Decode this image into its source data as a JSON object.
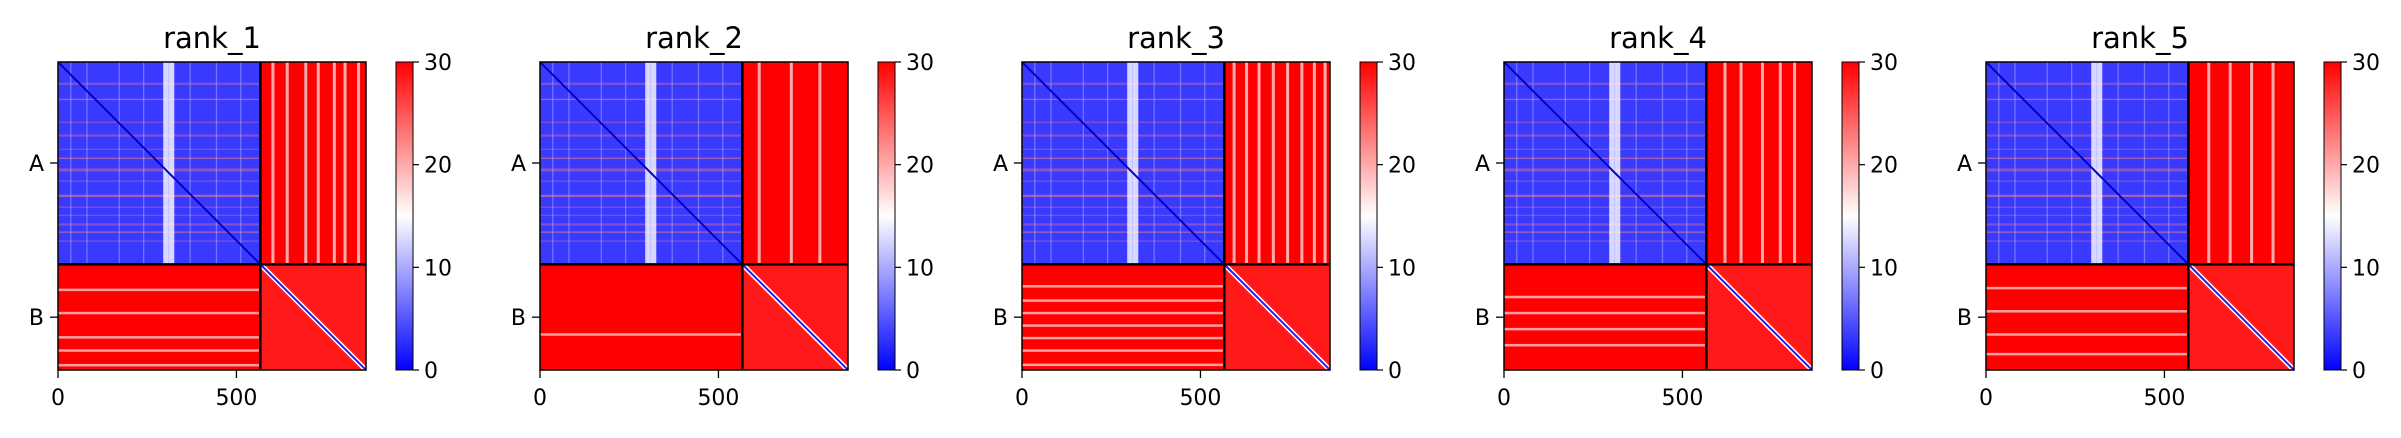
{
  "figure_type": "heatmap grid",
  "chart_data": [
    {
      "type": "heatmap",
      "title": "rank_1",
      "x_ticks": [
        0,
        500
      ],
      "x_range": [
        0,
        863
      ],
      "chain_boundary": 567,
      "y_ticks": [
        {
          "label": "A",
          "at": 283
        },
        {
          "label": "B",
          "at": 715
        }
      ],
      "colorbar": {
        "min": 0,
        "max": 30,
        "ticks": [
          0,
          10,
          20,
          30
        ],
        "colormap": "bwr"
      },
      "intra_chain_bands_A": [
        58,
        103,
        167,
        203,
        243,
        268,
        298,
        303,
        332,
        372,
        405,
        428,
        452,
        475,
        500
      ],
      "pale_columns_AB": [
        598,
        638,
        690,
        725,
        770,
        800,
        838
      ],
      "pale_rows_B": [
        635,
        700,
        768,
        805,
        846
      ]
    },
    {
      "type": "heatmap",
      "title": "rank_2",
      "x_ticks": [
        0,
        500
      ],
      "x_range": [
        0,
        863
      ],
      "chain_boundary": 567,
      "y_ticks": [
        {
          "label": "A",
          "at": 283
        },
        {
          "label": "B",
          "at": 715
        }
      ],
      "colorbar": {
        "min": 0,
        "max": 30,
        "ticks": [
          0,
          10,
          20,
          30
        ],
        "colormap": "bwr"
      },
      "intra_chain_bands_A": [
        58,
        103,
        167,
        203,
        243,
        268,
        298,
        303,
        332,
        372,
        405,
        428,
        452,
        475,
        500
      ],
      "pale_columns_AB": [
        610,
        700,
        780
      ],
      "pale_rows_B": [
        760
      ]
    },
    {
      "type": "heatmap",
      "title": "rank_3",
      "x_ticks": [
        0,
        500
      ],
      "x_range": [
        0,
        863
      ],
      "chain_boundary": 567,
      "y_ticks": [
        {
          "label": "A",
          "at": 283
        },
        {
          "label": "B",
          "at": 715
        }
      ],
      "colorbar": {
        "min": 0,
        "max": 30,
        "ticks": [
          0,
          10,
          20,
          30
        ],
        "colormap": "bwr"
      },
      "intra_chain_bands_A": [
        58,
        103,
        167,
        203,
        243,
        268,
        298,
        303,
        332,
        372,
        405,
        428,
        452,
        475,
        500
      ],
      "pale_columns_AB": [
        590,
        625,
        660,
        700,
        740,
        780,
        815,
        845
      ],
      "pale_rows_B": [
        625,
        665,
        700,
        735,
        770,
        805,
        845
      ]
    },
    {
      "type": "heatmap",
      "title": "rank_4",
      "x_ticks": [
        0,
        500
      ],
      "x_range": [
        0,
        863
      ],
      "chain_boundary": 567,
      "y_ticks": [
        {
          "label": "A",
          "at": 283
        },
        {
          "label": "B",
          "at": 715
        }
      ],
      "colorbar": {
        "min": 0,
        "max": 30,
        "ticks": [
          0,
          10,
          20,
          30
        ],
        "colormap": "bwr"
      },
      "intra_chain_bands_A": [
        58,
        103,
        167,
        203,
        243,
        268,
        298,
        303,
        332,
        372,
        405,
        428,
        452,
        475,
        500
      ],
      "pale_columns_AB": [
        615,
        660,
        720,
        770,
        810
      ],
      "pale_rows_B": [
        655,
        700,
        745,
        790
      ]
    },
    {
      "type": "heatmap",
      "title": "rank_5",
      "x_ticks": [
        0,
        500
      ],
      "x_range": [
        0,
        863
      ],
      "chain_boundary": 567,
      "y_ticks": [
        {
          "label": "A",
          "at": 283
        },
        {
          "label": "B",
          "at": 715
        }
      ],
      "colorbar": {
        "min": 0,
        "max": 30,
        "ticks": [
          0,
          10,
          20,
          30
        ],
        "colormap": "bwr"
      },
      "intra_chain_bands_A": [
        58,
        103,
        167,
        203,
        243,
        268,
        298,
        303,
        332,
        372,
        405,
        428,
        452,
        475,
        500
      ],
      "pale_columns_AB": [
        620,
        680,
        740,
        800
      ],
      "pale_rows_B": [
        630,
        695,
        760,
        815
      ]
    }
  ]
}
